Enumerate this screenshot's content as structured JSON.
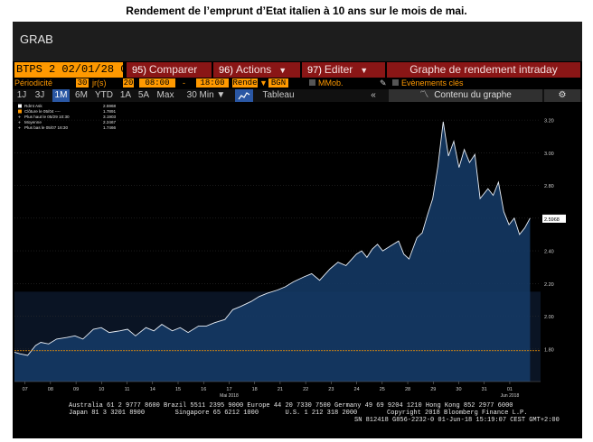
{
  "caption": "Rendement de l’emprunt d’Etat italien à 10 ans sur le mois de mai.",
  "window": {
    "title": "GRAB"
  },
  "toolbar": {
    "security": "BTPS 2 02/01/28 Co",
    "compare": {
      "num": "95)",
      "label": "Comparer"
    },
    "actions": {
      "num": "96)",
      "label": "Actions"
    },
    "edit": {
      "num": "97)",
      "label": "Editer"
    },
    "chart_title": "Graphe de rendement intraday"
  },
  "settings": {
    "periodicity_label": "Périodicité",
    "periodicity_value": "30",
    "periodicity_unit": "jr(s)",
    "days": "20",
    "time_from": "08:00",
    "dash": "-",
    "time_to": "18:00",
    "field": "Rende",
    "source": "BGN",
    "mmob": "MMob.",
    "events": "Evènements clés"
  },
  "ranges": [
    "1J",
    "3J",
    "1M",
    "6M",
    "YTD",
    "1A",
    "5A",
    "Max"
  ],
  "active_range": "1M",
  "interval": "30 Min ▼",
  "view_mode": "Tableau",
  "collapse": "«",
  "content_label": "Contenu du graphe",
  "legend": [
    {
      "label": "Rdmt Ask",
      "value": "2.5968",
      "color": "#ffffff",
      "marker": "square"
    },
    {
      "label": "Clôture le 05/04 ----",
      "value": "1.7891",
      "color": "#ff9900",
      "marker": "square"
    },
    {
      "label": "Plus haut le 05/29 10:30",
      "value": "3.1903",
      "color": "#cccccc",
      "marker": "plus"
    },
    {
      "label": "Moyenne",
      "value": "2.2467",
      "color": "#cccccc",
      "marker": "plus"
    },
    {
      "label": "Plus bas le 05/07 16:30",
      "value": "1.7466",
      "color": "#cccccc",
      "marker": "plus"
    }
  ],
  "footer": {
    "line1": "Australia 61 2 9777 8600 Brazil 5511 2395 9000 Europe 44 20 7330 7500 Germany 49 69 9204 1210 Hong Kong 852 2977 6000",
    "line2a": "Japan 81 3 3201 8900        Singapore 65 6212 1000       U.S. 1 212 318 2000",
    "line2b": "Copyright 2018 Bloomberg Finance L.P.",
    "line3": "SN 812418 G856-2232-0 01-Jun-18 15:19:07 CEST GMT+2:00"
  },
  "chart_data": {
    "type": "area",
    "title": "",
    "xlabel": "",
    "ylabel": "",
    "ylim": [
      1.6,
      3.3
    ],
    "yticks": [
      "3.20",
      "3.00",
      "2.80",
      "2.60",
      "2.40",
      "2.20",
      "2.00",
      "1.80"
    ],
    "xticks": [
      "07",
      "08",
      "09",
      "10",
      "11",
      "14",
      "15",
      "16",
      "17",
      "18",
      "21",
      "22",
      "23",
      "24",
      "25",
      "28",
      "29",
      "30",
      "31",
      "01"
    ],
    "xtick_sublabels": {
      "17": "Mai 2018",
      "01": "Jun 2018"
    },
    "last_value_label": "2.5968",
    "reference_line": {
      "label": "Clôture le 05/04",
      "value": 1.7891,
      "color": "#ff9900"
    },
    "x": [
      6.0,
      6.2,
      6.5,
      6.8,
      7.0,
      7.3,
      7.6,
      8.0,
      8.3,
      8.6,
      9.0,
      9.3,
      9.6,
      10.0,
      10.3,
      10.6,
      11.0,
      11.3,
      11.6,
      12.0,
      12.3,
      12.6,
      13.0,
      13.3,
      13.6,
      14.0,
      14.3,
      14.6,
      15.0,
      15.3,
      15.6,
      16.0,
      16.3,
      16.6,
      17.0,
      17.3,
      17.6,
      18.0,
      18.3,
      18.6,
      19.0,
      19.2,
      19.4,
      19.6,
      19.8,
      20.0,
      20.3,
      20.6,
      20.8,
      21.0,
      21.3,
      21.5,
      21.7,
      21.9,
      22.1,
      22.3,
      22.5,
      22.7,
      22.9,
      23.1,
      23.3,
      23.5,
      23.7,
      24.0,
      24.2,
      24.4,
      24.6,
      24.8,
      25.0,
      25.2,
      25.4,
      25.6
    ],
    "y": [
      1.78,
      1.77,
      1.76,
      1.82,
      1.84,
      1.83,
      1.86,
      1.87,
      1.88,
      1.86,
      1.92,
      1.93,
      1.9,
      1.91,
      1.92,
      1.88,
      1.93,
      1.91,
      1.95,
      1.91,
      1.93,
      1.9,
      1.94,
      1.94,
      1.96,
      1.98,
      2.04,
      2.06,
      2.09,
      2.12,
      2.14,
      2.16,
      2.18,
      2.21,
      2.24,
      2.26,
      2.22,
      2.29,
      2.33,
      2.31,
      2.38,
      2.4,
      2.36,
      2.41,
      2.44,
      2.4,
      2.43,
      2.46,
      2.38,
      2.35,
      2.48,
      2.51,
      2.62,
      2.72,
      2.92,
      3.19,
      2.98,
      3.07,
      2.91,
      3.02,
      2.94,
      2.99,
      2.72,
      2.78,
      2.74,
      2.82,
      2.64,
      2.56,
      2.6,
      2.5,
      2.54,
      2.6
    ]
  }
}
